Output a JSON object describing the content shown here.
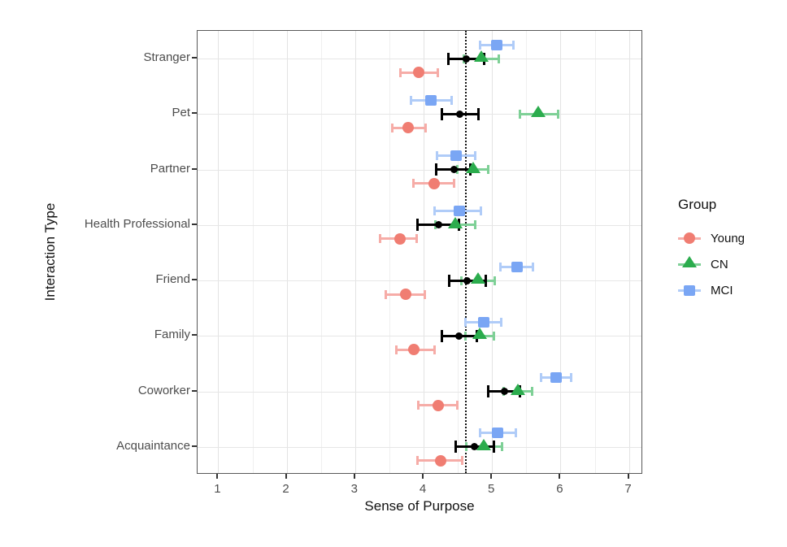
{
  "figure": {
    "xlabel": "Sense of Purpose",
    "ylabel": "Interaction Type",
    "legend_title": "Group"
  },
  "chart_data": {
    "type": "scatter",
    "subtype": "horizontal-dot-plot-with-error-bars",
    "title": "",
    "xlabel": "Sense of Purpose",
    "ylabel": "Interaction Type",
    "xlim": [
      0.7,
      7.2
    ],
    "xticks": [
      1,
      2,
      3,
      4,
      5,
      6,
      7
    ],
    "grid": "on (major + 0.5 minor vertical, horizontal per category)",
    "reference_line_x": 4.6,
    "categories": [
      "Stranger",
      "Pet",
      "Partner",
      "Health Professional",
      "Friend",
      "Family",
      "Coworker",
      "Acquaintance"
    ],
    "legend": {
      "title": "Group",
      "position": "right",
      "entries": [
        "Young",
        "CN",
        "MCI"
      ]
    },
    "series": [
      {
        "name": "Young",
        "marker": "circle",
        "row": "bottom",
        "in_legend": true,
        "color": "#F07D72",
        "bar_color": "#F6ACA7",
        "values": [
          3.93,
          3.78,
          4.16,
          3.66,
          3.74,
          3.86,
          4.21,
          4.25
        ],
        "ci_low": [
          3.64,
          3.53,
          3.83,
          3.35,
          3.43,
          3.58,
          3.91,
          3.89
        ],
        "ci_high": [
          4.23,
          4.05,
          4.46,
          3.92,
          4.04,
          4.18,
          4.51,
          4.58
        ]
      },
      {
        "name": "CN",
        "marker": "triangle",
        "row": "middle",
        "in_legend": true,
        "color": "#2BAC4D",
        "bar_color": "#7ED096",
        "values": [
          4.84,
          5.68,
          4.72,
          4.46,
          4.79,
          4.82,
          5.38,
          4.88
        ],
        "ci_low": [
          4.57,
          5.39,
          4.48,
          4.15,
          4.54,
          4.59,
          5.15,
          4.6
        ],
        "ci_high": [
          5.12,
          5.98,
          4.96,
          4.77,
          5.06,
          5.05,
          5.6,
          5.16
        ]
      },
      {
        "name": "MCI",
        "marker": "square",
        "row": "top",
        "in_legend": true,
        "color": "#7AA6F4",
        "bar_color": "#B0CCF8",
        "values": [
          5.07,
          4.11,
          4.47,
          4.52,
          5.37,
          4.88,
          5.94,
          5.08
        ],
        "ci_low": [
          4.81,
          3.8,
          4.18,
          4.14,
          5.11,
          4.59,
          5.7,
          4.81
        ],
        "ci_high": [
          5.33,
          4.43,
          4.77,
          4.86,
          5.62,
          5.15,
          6.17,
          5.37
        ]
      },
      {
        "name": "unlabeled-black",
        "marker": "point",
        "row": "middle",
        "in_legend": false,
        "color": "#000000",
        "bar_color": "#000000",
        "values": [
          4.62,
          4.53,
          4.45,
          4.22,
          4.63,
          4.52,
          5.18,
          4.74
        ],
        "ci_low": [
          4.35,
          4.25,
          4.17,
          3.89,
          4.36,
          4.25,
          4.93,
          4.45
        ],
        "ci_high": [
          4.9,
          4.82,
          4.7,
          4.54,
          4.93,
          4.79,
          5.43,
          5.04
        ]
      }
    ]
  }
}
